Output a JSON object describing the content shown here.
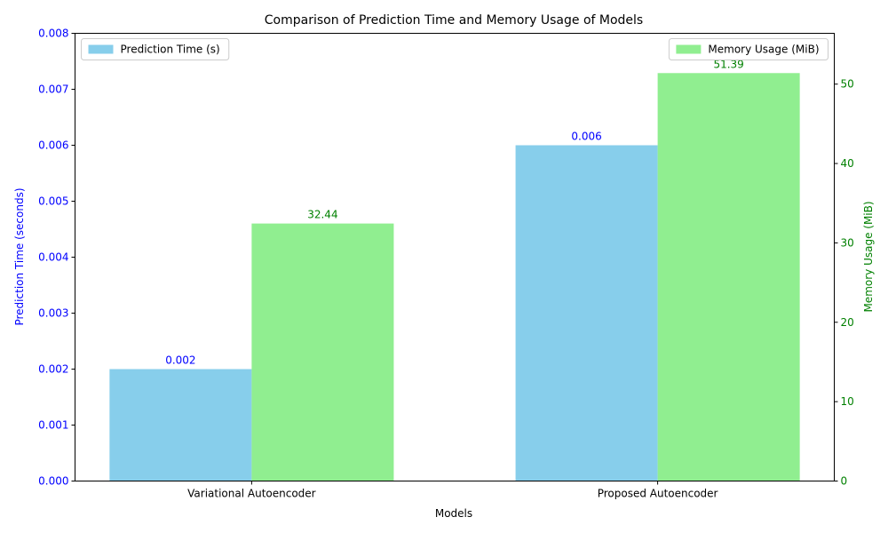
{
  "chart_data": {
    "type": "bar",
    "title": "Comparison of Prediction Time and Memory Usage of Models",
    "xlabel": "Models",
    "categories": [
      "Variational Autoencoder",
      "Proposed Autoencoder"
    ],
    "series": [
      {
        "name": "Prediction Time (s)",
        "axis": "left",
        "values": [
          0.002,
          0.006
        ],
        "labels": [
          "0.002",
          "0.006"
        ],
        "color": "#87ceeb",
        "label_color": "#0000ff"
      },
      {
        "name": "Memory Usage (MiB)",
        "axis": "right",
        "values": [
          32.44,
          51.39
        ],
        "labels": [
          "32.44",
          "51.39"
        ],
        "color": "#90ee90",
        "label_color": "#008000"
      }
    ],
    "y_left": {
      "label": "Prediction Time (seconds)",
      "ylim": [
        0,
        0.008
      ],
      "ticks": [
        0,
        0.001,
        0.002,
        0.003,
        0.004,
        0.005,
        0.006,
        0.007,
        0.008
      ],
      "tick_labels": [
        "0.000",
        "0.001",
        "0.002",
        "0.003",
        "0.004",
        "0.005",
        "0.006",
        "0.007",
        "0.008"
      ],
      "color": "#0000ff"
    },
    "y_right": {
      "label": "Memory Usage (MiB)",
      "ylim": [
        0,
        56.4
      ],
      "ticks": [
        0,
        10,
        20,
        30,
        40,
        50
      ],
      "tick_labels": [
        "0",
        "10",
        "20",
        "30",
        "40",
        "50"
      ],
      "color": "#008000"
    },
    "legend_left": "upper-left",
    "legend_right": "upper-right",
    "grid": false
  }
}
